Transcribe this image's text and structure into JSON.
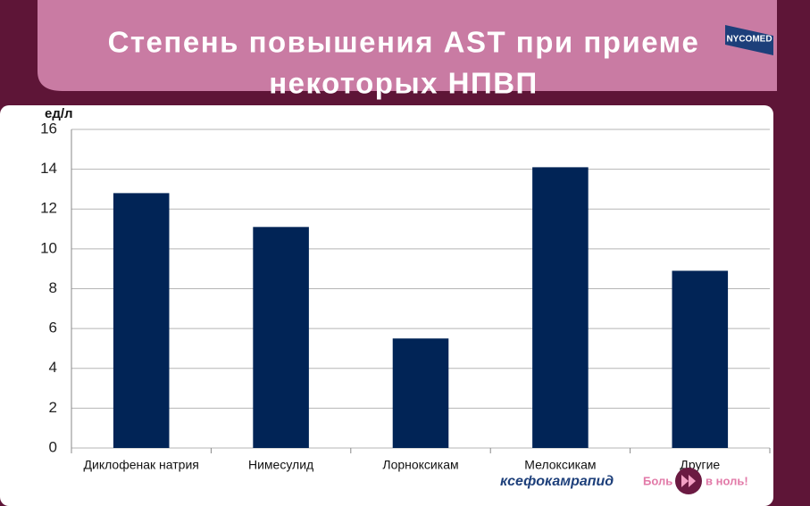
{
  "chart_data": {
    "type": "bar",
    "title_lines": [
      "Степень повышения AST при приеме",
      "некоторых НПВП"
    ],
    "y_label": "ед/л",
    "categories": [
      "Диклофенак натрия",
      "Нимесулид",
      "Лорноксикам",
      "Мелоксикам",
      "Другие"
    ],
    "values": [
      12.8,
      11.1,
      5.5,
      14.1,
      8.9
    ],
    "color": "#012456",
    "ylim": [
      0,
      16
    ],
    "yticks": [
      0,
      2,
      4,
      6,
      8,
      10,
      12,
      14,
      16
    ],
    "grid": true
  },
  "logo": "NYCOMED",
  "footer": {
    "brand": "ксефокамрапид",
    "slogan_start": "Боль",
    "slogan_end": "в ноль!"
  }
}
